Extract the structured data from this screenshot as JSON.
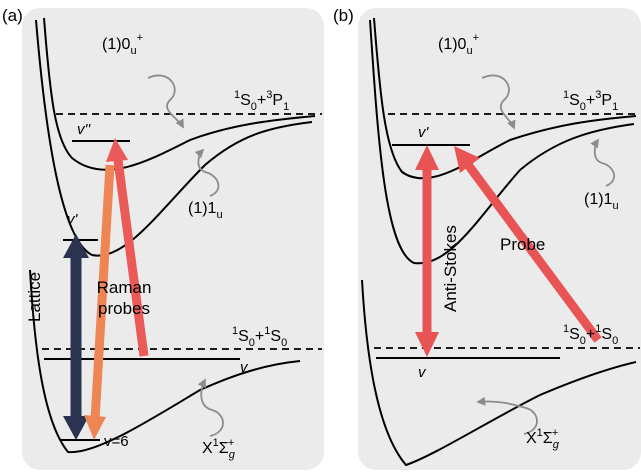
{
  "panel_a": {
    "panel_label": "(a)",
    "state_1_0u_plus": {
      "main": "(1)0",
      "sub": "u",
      "sup": "+"
    },
    "state_1_1u": {
      "main": "(1)1",
      "sub": "u"
    },
    "asymptote_upper": {
      "sup1": "1",
      "part1": "S",
      "sub1": "0",
      "plus": "+",
      "sup2": "3",
      "part2": "P",
      "sub2": "1"
    },
    "asymptote_lower": {
      "sup1": "1",
      "part1": "S",
      "sub1": "0",
      "plus": "+",
      "sup2": "1",
      "part2": "S",
      "sub2": "0"
    },
    "level_v_double_prime": "v''",
    "level_v_prime": "v'",
    "level_v": "v",
    "level_v6": "v=6",
    "lattice_label": "Lattice",
    "raman_line1": "Raman",
    "raman_line2": "probes",
    "ground_state": {
      "main": "X",
      "sup": "1",
      "sigma": "Σ",
      "sub": "g",
      "plus": "+"
    }
  },
  "panel_b": {
    "panel_label": "(b)",
    "state_1_0u_plus": {
      "main": "(1)0",
      "sub": "u",
      "sup": "+"
    },
    "state_1_1u": {
      "main": "(1)1",
      "sub": "u"
    },
    "asymptote_upper": {
      "sup1": "1",
      "part1": "S",
      "sub1": "0",
      "plus": "+",
      "sup2": "3",
      "part2": "P",
      "sub2": "1"
    },
    "asymptote_lower": {
      "sup1": "1",
      "part1": "S",
      "sub1": "0",
      "plus": "+",
      "sup2": "1",
      "part2": "S",
      "sub2": "0"
    },
    "level_v_prime": "v'",
    "level_v": "v",
    "anti_stokes_label": "Anti-Stokes",
    "probe_label": "Probe",
    "ground_state": {
      "main": "X",
      "sup": "1",
      "sigma": "Σ",
      "sub": "g",
      "plus": "+"
    }
  },
  "colors": {
    "panel_background": "#ebebeb",
    "lattice_arrow": "#2a3350",
    "raman_probe_orange": "#ee8554",
    "raman_probe_red": "#ea5a58",
    "anti_stokes_arrow": "#e85454",
    "probe_arrow": "#e85454",
    "wavy_pointer": "#8c8c8c"
  }
}
